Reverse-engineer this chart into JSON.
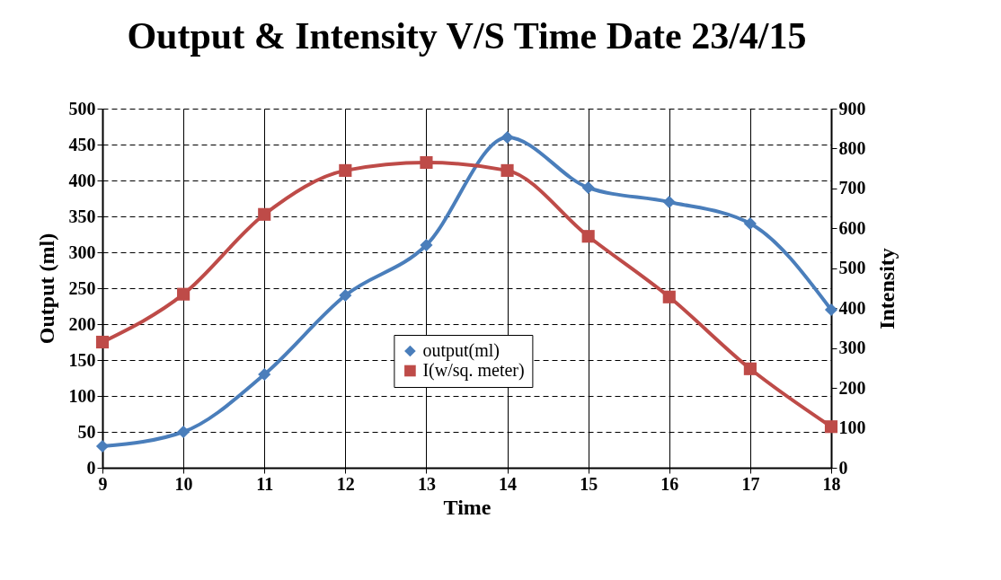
{
  "chart_data": {
    "type": "line",
    "title": "Output & Intensity V/S Time Date 23/4/15",
    "xlabel": "Time",
    "ylabel": "Output (ml)",
    "y2label": "Intensity",
    "x": [
      9,
      10,
      11,
      12,
      13,
      14,
      15,
      16,
      17,
      18
    ],
    "series": [
      {
        "name": "output(ml)",
        "color": "#4a7ebb",
        "marker": "diamond",
        "values": [
          30,
          50,
          130,
          240,
          310,
          460,
          390,
          370,
          340,
          220
        ]
      },
      {
        "name": "I(w/sq. meter)",
        "color": "#be4b48",
        "marker": "square",
        "axis": "y2",
        "values": [
          315,
          435,
          635,
          745,
          765,
          745,
          580,
          428,
          248,
          103
        ]
      }
    ],
    "xlim": [
      9,
      18
    ],
    "xticks": [
      9,
      10,
      11,
      12,
      13,
      14,
      15,
      16,
      17,
      18
    ],
    "ylim": [
      0,
      500
    ],
    "yticks": [
      0,
      50,
      100,
      150,
      200,
      250,
      300,
      350,
      400,
      450,
      500
    ],
    "y2lim": [
      0,
      900
    ],
    "y2ticks": [
      0,
      100,
      200,
      300,
      400,
      500,
      600,
      700,
      800,
      900
    ],
    "grid": true,
    "legend": "bottom",
    "line_style": "solid"
  }
}
